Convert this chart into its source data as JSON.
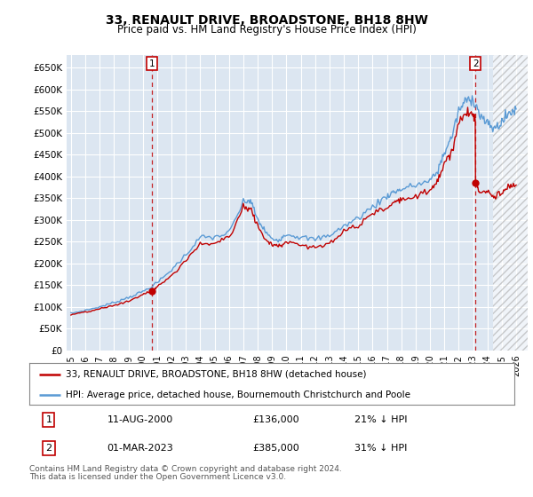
{
  "title": "33, RENAULT DRIVE, BROADSTONE, BH18 8HW",
  "subtitle": "Price paid vs. HM Land Registry's House Price Index (HPI)",
  "legend_line1": "33, RENAULT DRIVE, BROADSTONE, BH18 8HW (detached house)",
  "legend_line2": "HPI: Average price, detached house, Bournemouth Christchurch and Poole",
  "footnote1": "Contains HM Land Registry data © Crown copyright and database right 2024.",
  "footnote2": "This data is licensed under the Open Government Licence v3.0.",
  "transaction1_date_label": "11-AUG-2000",
  "transaction1_price_label": "£136,000",
  "transaction1_hpi_label": "21% ↓ HPI",
  "transaction2_date_label": "01-MAR-2023",
  "transaction2_price_label": "£385,000",
  "transaction2_hpi_label": "31% ↓ HPI",
  "hpi_color": "#5b9bd5",
  "price_color": "#c00000",
  "marker_box_color": "#c00000",
  "plot_bg_color": "#dce6f1",
  "transaction1_x": 2000.62,
  "transaction2_x": 2023.17,
  "transaction1_y": 136000,
  "transaction2_y": 385000,
  "ylim_min": 0,
  "ylim_max": 680000,
  "yticks": [
    0,
    50000,
    100000,
    150000,
    200000,
    250000,
    300000,
    350000,
    400000,
    450000,
    500000,
    550000,
    600000,
    650000
  ],
  "xlim_min": 1994.7,
  "xlim_max": 2026.8,
  "hatch_start": 2024.4
}
